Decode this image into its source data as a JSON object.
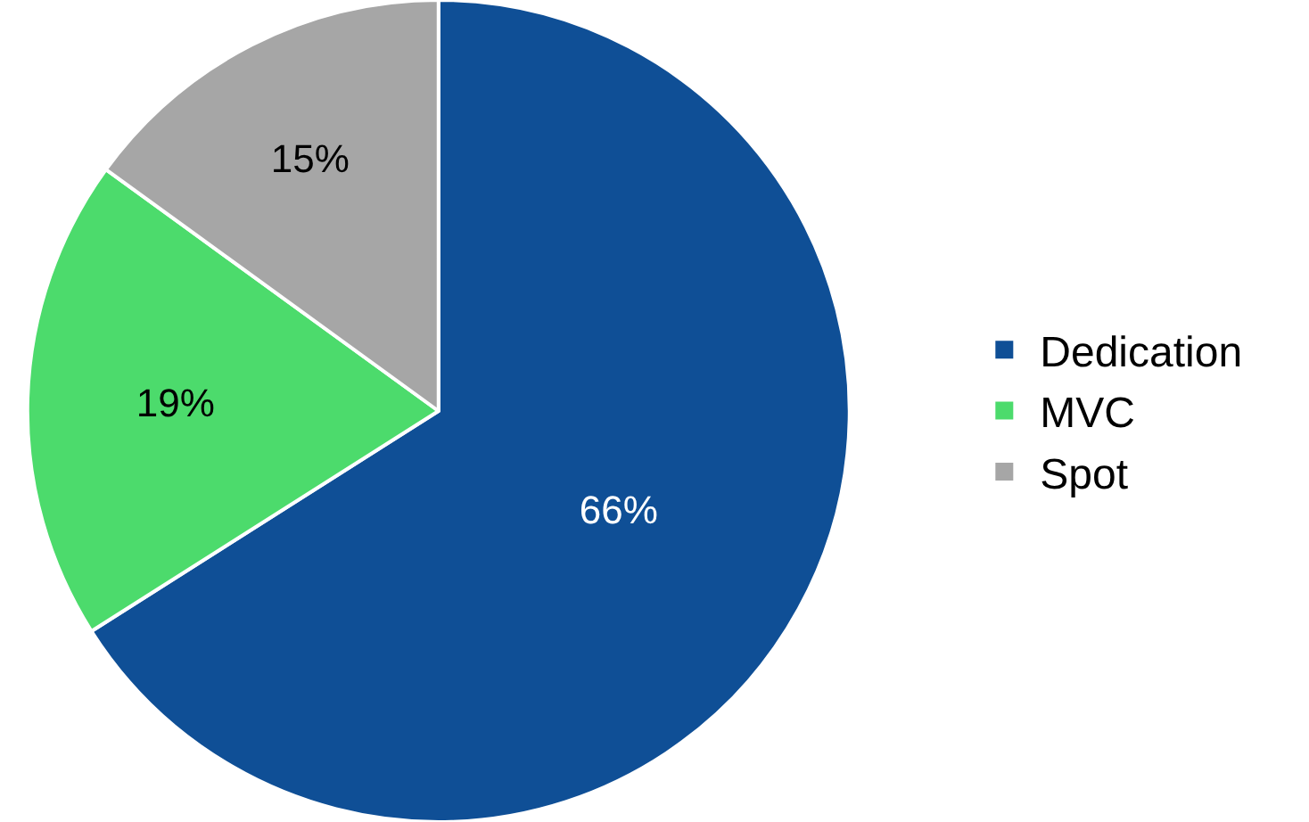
{
  "chart_data": {
    "type": "pie",
    "categories": [
      "Dedication",
      "MVC",
      "Spot"
    ],
    "values": [
      66,
      19,
      15
    ],
    "value_labels": [
      "66%",
      "19%",
      "15%"
    ],
    "colors": [
      "#0f4f96",
      "#4cdb6c",
      "#a6a6a6"
    ],
    "legend": "right"
  }
}
